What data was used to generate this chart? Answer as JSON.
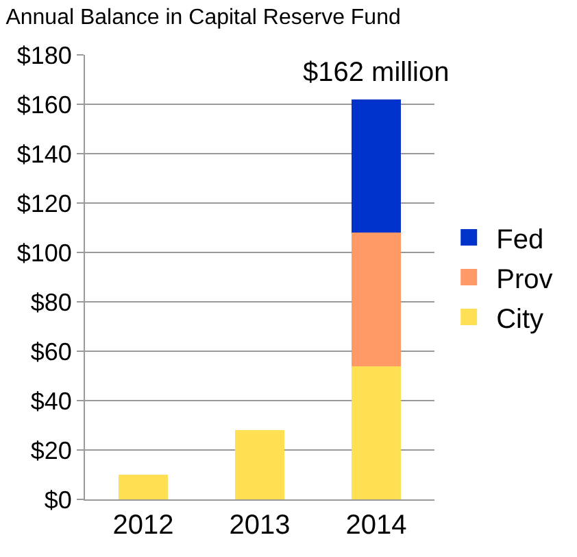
{
  "chart_data": {
    "type": "bar",
    "title": "Annual Balance in Capital Reserve Fund",
    "categories": [
      "2012",
      "2013",
      "2014"
    ],
    "stacked": true,
    "series": [
      {
        "name": "City",
        "color": "#ffe055",
        "values": [
          10,
          28,
          54
        ]
      },
      {
        "name": "Prov",
        "color": "#ff9966",
        "values": [
          null,
          null,
          54
        ]
      },
      {
        "name": "Fed",
        "color": "#0033cc",
        "values": [
          null,
          null,
          54
        ]
      }
    ],
    "ylim": [
      0,
      180
    ],
    "yticks": [
      {
        "value": 0,
        "label": "$0"
      },
      {
        "value": 20,
        "label": "$20"
      },
      {
        "value": 40,
        "label": "$40"
      },
      {
        "value": 60,
        "label": "$60"
      },
      {
        "value": 80,
        "label": "$80"
      },
      {
        "value": 100,
        "label": "$100"
      },
      {
        "value": 120,
        "label": "$120"
      },
      {
        "value": 140,
        "label": "$140"
      },
      {
        "value": 160,
        "label": "$160"
      },
      {
        "value": 180,
        "label": "$180"
      }
    ],
    "grid": "y",
    "legend": "right",
    "annotations": [
      {
        "text": "$162 million",
        "x": "2014",
        "y": 162
      }
    ]
  }
}
